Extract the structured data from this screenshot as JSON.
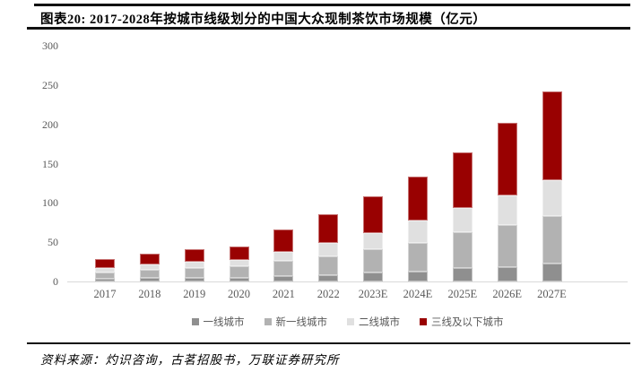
{
  "header": {
    "title": "图表20:  2017-2028年按城市线级划分的中国大众现制茶饮市场规模（亿元）"
  },
  "footer": {
    "source": "资料来源：灼识咨询，古茗招股书，万联证券研究所"
  },
  "chart_data": {
    "type": "bar",
    "stacked": true,
    "title": "2017-2028年按城市线级划分的中国大众现制茶饮市场规模（亿元）",
    "xlabel": "",
    "ylabel": "",
    "ylim": [
      0,
      300
    ],
    "yticks": [
      0,
      50,
      100,
      150,
      200,
      250,
      300
    ],
    "grid": false,
    "legend_position": "bottom",
    "categories": [
      "2017",
      "2018",
      "2019",
      "2020",
      "2021",
      "2022",
      "2023E",
      "2024E",
      "2025E",
      "2026E",
      "2027E"
    ],
    "series": [
      {
        "name": "一线城市",
        "color": "#8f8f8f",
        "values": [
          3,
          4,
          5,
          5,
          7,
          8,
          11,
          13,
          17,
          18,
          23
        ]
      },
      {
        "name": "新一线城市",
        "color": "#b2b2b2",
        "values": [
          8,
          11,
          12,
          14,
          19,
          24,
          30,
          36,
          46,
          54,
          60
        ]
      },
      {
        "name": "二线城市",
        "color": "#e0e0e0",
        "values": [
          6,
          7,
          8,
          8,
          12,
          17,
          21,
          29,
          30,
          38,
          46
        ]
      },
      {
        "name": "三线及以下城市",
        "color": "#990101",
        "values": [
          12,
          13,
          16,
          18,
          28,
          36,
          46,
          56,
          71,
          92,
          113
        ]
      }
    ],
    "totals": [
      29,
      35,
      41,
      45,
      66,
      85,
      108,
      134,
      164,
      202,
      242
    ]
  },
  "colors": {
    "axis_text": "#595959",
    "axis_line": "#d9d9d9",
    "rule": "#111111",
    "background": "#ffffff"
  }
}
